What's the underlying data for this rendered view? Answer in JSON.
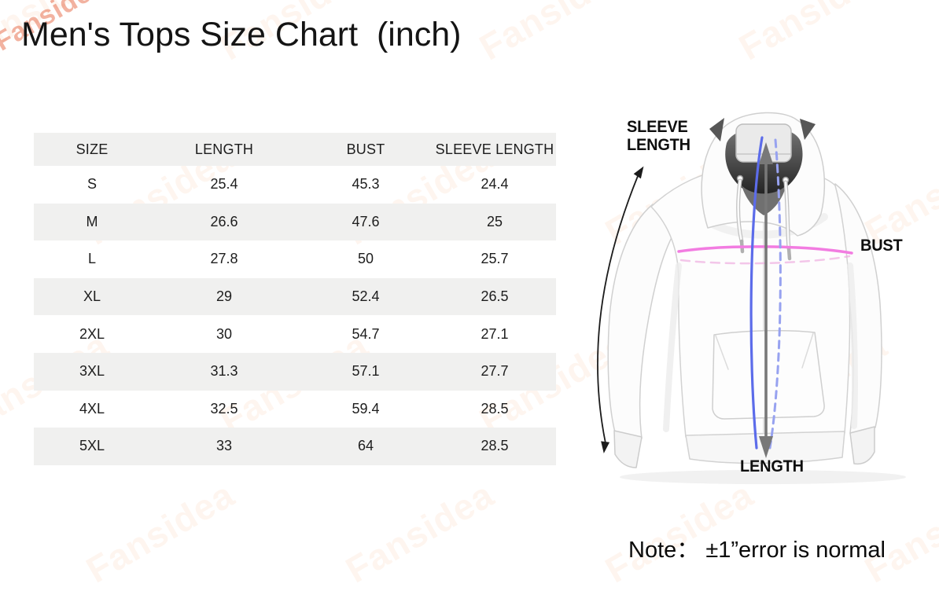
{
  "title": "Men's Tops Size Chart  (inch)",
  "watermark": {
    "text": "Fansidea"
  },
  "table": {
    "headers": [
      "SIZE",
      "LENGTH",
      "BUST",
      "SLEEVE LENGTH"
    ],
    "rows": [
      [
        "S",
        "25.4",
        "45.3",
        "24.4"
      ],
      [
        "M",
        "26.6",
        "47.6",
        "25"
      ],
      [
        "L",
        "27.8",
        "50",
        "25.7"
      ],
      [
        "XL",
        "29",
        "52.4",
        "26.5"
      ],
      [
        "2XL",
        "30",
        "54.7",
        "27.1"
      ],
      [
        "3XL",
        "31.3",
        "57.1",
        "27.7"
      ],
      [
        "4XL",
        "32.5",
        "59.4",
        "28.5"
      ],
      [
        "5XL",
        "33",
        "64",
        "28.5"
      ]
    ]
  },
  "diagram": {
    "sleeve_length_label_line1": "SLEEVE",
    "sleeve_length_label_line2": "LENGTH",
    "bust_label": "BUST",
    "length_label": "LENGTH",
    "colors": {
      "bust_line": "#f27ce1",
      "bust_line_dashed": "#eea9de",
      "length_line_blue": "#5c6cea",
      "length_line_blue_dashed": "#97a2f0",
      "length_arrow": "#787878",
      "sleeve_arrow": "#1b1b1b"
    }
  },
  "note": "Note： ±1”error is normal",
  "chart_data": {
    "type": "table",
    "title": "Men's Tops Size Chart (inch)",
    "unit": "inch",
    "columns": [
      "SIZE",
      "LENGTH",
      "BUST",
      "SLEEVE LENGTH"
    ],
    "rows": [
      [
        "S",
        25.4,
        45.3,
        24.4
      ],
      [
        "M",
        26.6,
        47.6,
        25
      ],
      [
        "L",
        27.8,
        50,
        25.7
      ],
      [
        "XL",
        29,
        52.4,
        26.5
      ],
      [
        "2XL",
        30,
        54.7,
        27.1
      ],
      [
        "3XL",
        31.3,
        57.1,
        27.7
      ],
      [
        "4XL",
        32.5,
        59.4,
        28.5
      ],
      [
        "5XL",
        33,
        64,
        28.5
      ]
    ],
    "note": "±1\" error is normal"
  }
}
